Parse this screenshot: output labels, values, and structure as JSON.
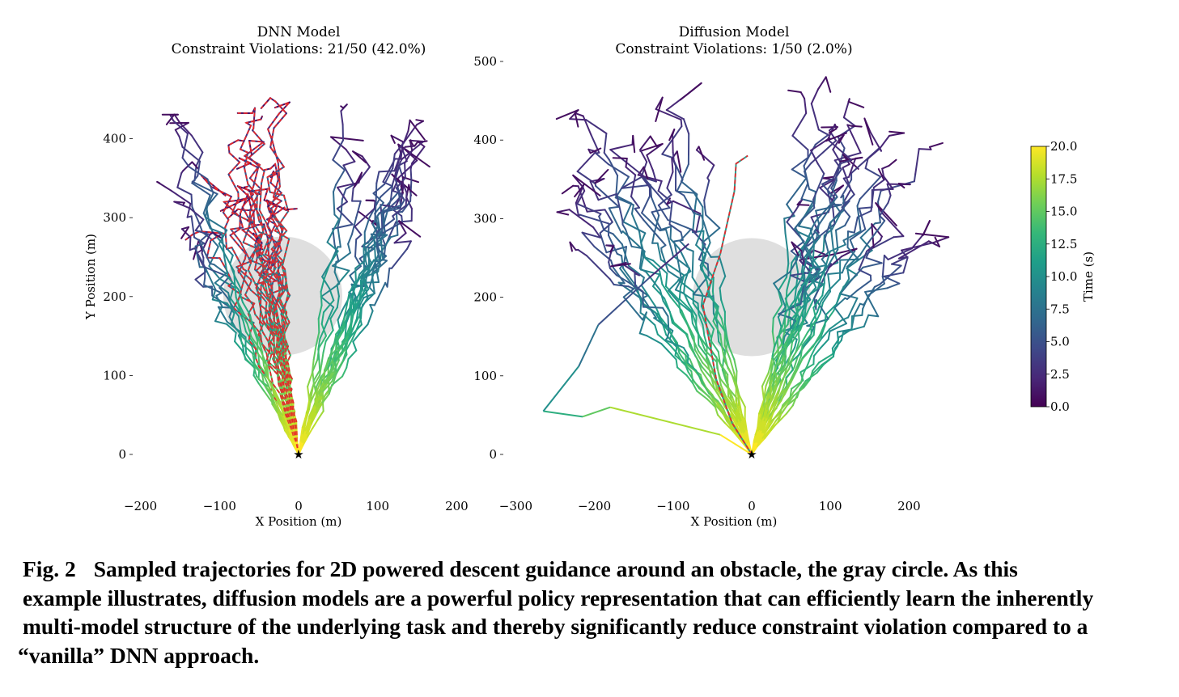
{
  "chart_data": [
    {
      "type": "line",
      "title": "DNN Model",
      "subtitle": "Constraint Violations: 21/50 (42.0%)",
      "xlabel": "X Position (m)",
      "ylabel": "Y Position (m)",
      "xlim": [
        -200,
        200
      ],
      "ylim": [
        0,
        400
      ],
      "xticks": [
        "−200",
        "−100",
        "0",
        "100",
        "200"
      ],
      "yticks": [
        "0",
        "100",
        "200",
        "300",
        "400"
      ],
      "obstacle": {
        "center": [
          -20,
          200
        ],
        "radius": 75,
        "color": "#dcdcdc"
      },
      "landing_marker": {
        "x": 0,
        "y": 0,
        "symbol": "★"
      },
      "trajectories_total": 50,
      "violations": 21,
      "violation_style": {
        "color": "#e8262a",
        "dash": "dashed"
      },
      "left_group_top_x_range": [
        -160,
        -20
      ],
      "right_group_top_x_range": [
        60,
        155
      ],
      "trajectory_top_y_range": [
        260,
        450
      ]
    },
    {
      "type": "line",
      "title": "Diffusion Model",
      "subtitle": "Constraint Violations: 1/50 (2.0%)",
      "xlabel": "X Position (m)",
      "ylabel": "",
      "xlim": [
        -300,
        200
      ],
      "ylim": [
        0,
        500
      ],
      "xticks": [
        "−300",
        "−200",
        "−100",
        "0",
        "100",
        "200"
      ],
      "yticks": [
        "0",
        "100",
        "200",
        "300",
        "400",
        "500"
      ],
      "obstacle": {
        "center": [
          0,
          200
        ],
        "radius": 75,
        "color": "#dcdcdc"
      },
      "landing_marker": {
        "x": 0,
        "y": 0,
        "symbol": "★"
      },
      "trajectories_total": 50,
      "violations": 1,
      "violation_style": {
        "color": "#e8262a",
        "dash": "dashed"
      },
      "left_group_top_x_range": [
        -230,
        -60
      ],
      "right_group_top_x_range": [
        0,
        220
      ],
      "trajectory_top_y_range": [
        250,
        455
      ]
    }
  ],
  "colorbar": {
    "label": "Time (s)",
    "min": 0.0,
    "max": 20.0,
    "ticks": [
      "0.0",
      "2.5",
      "5.0",
      "7.5",
      "10.0",
      "12.5",
      "15.0",
      "17.5",
      "20.0"
    ],
    "colormap": "viridis",
    "colors": [
      "#440154",
      "#482878",
      "#3e4989",
      "#31688e",
      "#26828e",
      "#1f9e89",
      "#35b779",
      "#6ece58",
      "#b5de2b",
      "#fde725"
    ]
  },
  "caption": {
    "label": "Fig. 2",
    "lines": [
      "Sampled trajectories for 2D powered descent guidance around an obstacle, the gray circle.  As this",
      "example illustrates, diffusion models are a powerful policy representation that can efficiently learn the inherently",
      "multi-model structure of the underlying task and thereby significantly reduce constraint violation compared to a",
      "“vanilla” DNN approach."
    ]
  }
}
